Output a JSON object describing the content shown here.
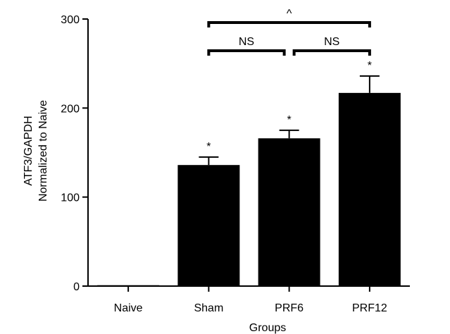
{
  "chart_data": {
    "type": "bar",
    "categories": [
      "Naive",
      "Sham",
      "PRF6",
      "PRF12"
    ],
    "values": [
      1,
      136,
      166,
      217
    ],
    "errors": [
      0,
      9,
      9,
      19
    ],
    "bar_color": "#000000",
    "xlabel": "Groups",
    "ylabel_line1": "ATF3/GAPDH",
    "ylabel_line2": "Normalized to Naive",
    "ylim": [
      0,
      300
    ],
    "yticks": [
      0,
      100,
      200,
      300
    ],
    "yticklabels": [
      "0",
      "100",
      "200",
      "300"
    ],
    "stars": [
      {
        "category": "Sham",
        "label": "*"
      },
      {
        "category": "PRF6",
        "label": "*"
      },
      {
        "category": "PRF12",
        "label": "*"
      }
    ],
    "comparisons": [
      {
        "from": "Sham",
        "to": "PRF6",
        "label": "NS",
        "level": 1
      },
      {
        "from": "PRF6",
        "to": "PRF12",
        "label": "NS",
        "level": 1
      },
      {
        "from": "Sham",
        "to": "PRF12",
        "label": "^",
        "level": 2
      }
    ],
    "grid": false
  }
}
